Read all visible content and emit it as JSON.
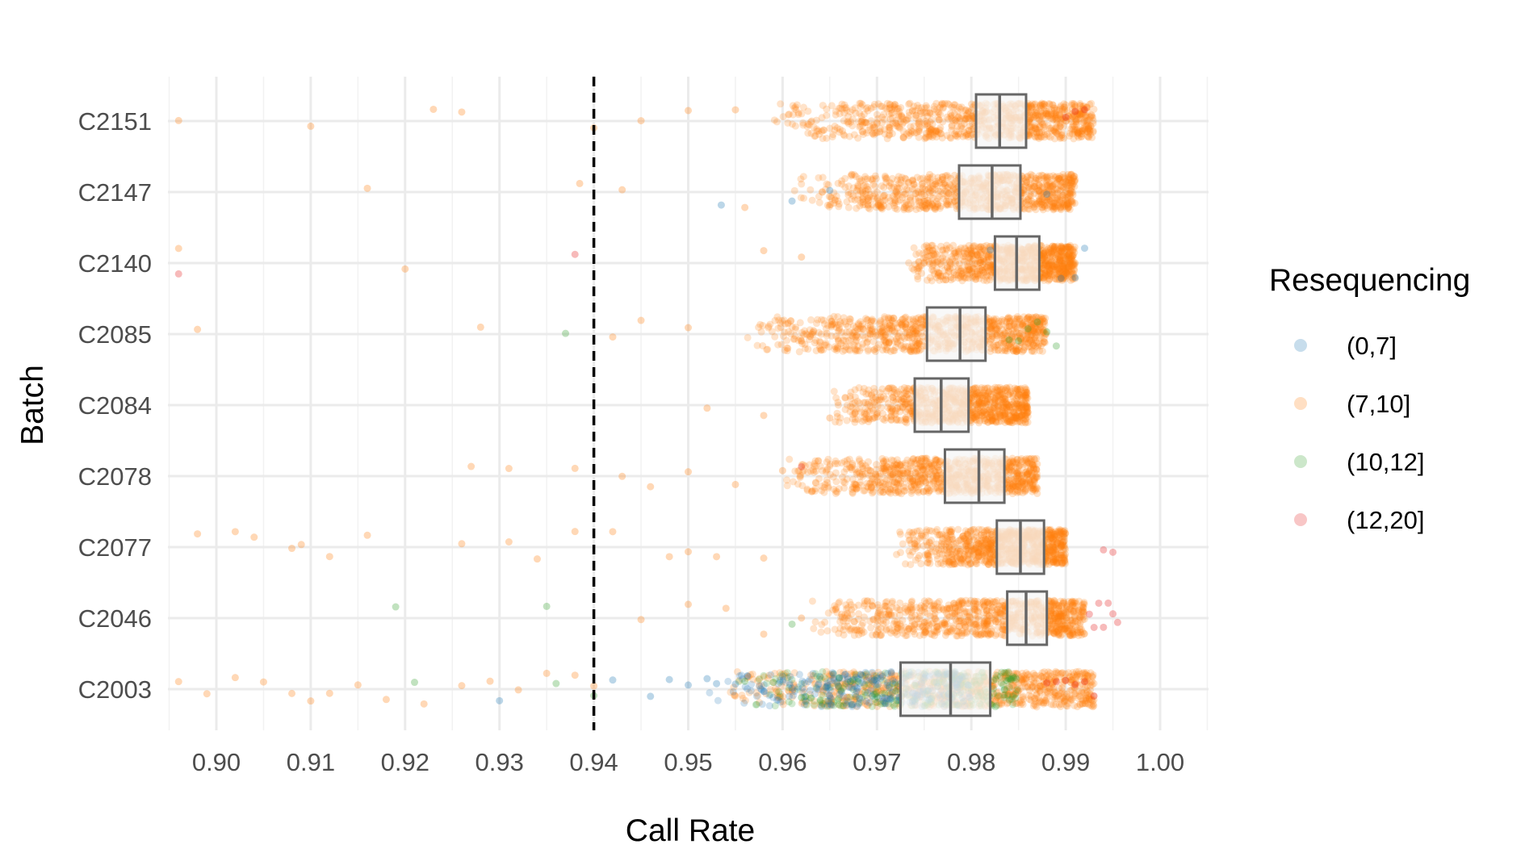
{
  "chart_data": {
    "type": "scatter",
    "subtype": "jittered strip plot with boxplots",
    "xlabel": "Call Rate",
    "ylabel": "Batch",
    "xlim": [
      0.895,
      1.005
    ],
    "x_ticks": [
      "0.90",
      "0.91",
      "0.92",
      "0.93",
      "0.94",
      "0.95",
      "0.96",
      "0.97",
      "0.98",
      "0.99",
      "1.00"
    ],
    "x_tick_values": [
      0.9,
      0.91,
      0.92,
      0.93,
      0.94,
      0.95,
      0.96,
      0.97,
      0.98,
      0.99,
      1.0
    ],
    "categories": [
      "C2151",
      "C2147",
      "C2140",
      "C2085",
      "C2084",
      "C2078",
      "C2077",
      "C2046",
      "C2003"
    ],
    "threshold": {
      "x": 0.94,
      "style": "dashed",
      "color": "#000000"
    },
    "grid": true,
    "legend": {
      "title": "Resequencing",
      "placement": "right",
      "entries": [
        {
          "label": "(0,7]",
          "color": "#1f78b4"
        },
        {
          "label": "(7,10]",
          "color": "#ff7f0e"
        },
        {
          "label": "(10,12]",
          "color": "#33a02c"
        },
        {
          "label": "(12,20]",
          "color": "#e31a1c"
        }
      ]
    },
    "boxplots": [
      {
        "batch": "C2151",
        "q1": 0.9805,
        "median": 0.983,
        "q3": 0.9858
      },
      {
        "batch": "C2147",
        "q1": 0.9787,
        "median": 0.9822,
        "q3": 0.9852
      },
      {
        "batch": "C2140",
        "q1": 0.9825,
        "median": 0.9848,
        "q3": 0.9872
      },
      {
        "batch": "C2085",
        "q1": 0.9753,
        "median": 0.9788,
        "q3": 0.9815
      },
      {
        "batch": "C2084",
        "q1": 0.974,
        "median": 0.9768,
        "q3": 0.9797
      },
      {
        "batch": "C2078",
        "q1": 0.9772,
        "median": 0.9808,
        "q3": 0.9835
      },
      {
        "batch": "C2077",
        "q1": 0.9827,
        "median": 0.9852,
        "q3": 0.9877
      },
      {
        "batch": "C2046",
        "q1": 0.9838,
        "median": 0.9858,
        "q3": 0.988
      },
      {
        "batch": "C2003",
        "q1": 0.9725,
        "median": 0.9778,
        "q3": 0.982
      }
    ],
    "series": [
      {
        "name": "(0,7]",
        "color": "#1f78b4",
        "points": [
          [
            "C2147",
            0.961
          ],
          [
            "C2147",
            0.9535
          ],
          [
            "C2147",
            0.965
          ],
          [
            "C2147",
            0.988
          ],
          [
            "C2140",
            0.991
          ],
          [
            "C2140",
            0.992
          ],
          [
            "C2140",
            0.9895
          ],
          [
            "C2140",
            0.982
          ],
          [
            "C2003",
            0.93
          ],
          [
            "C2003",
            0.942
          ],
          [
            "C2003",
            0.946
          ],
          [
            "C2003",
            0.95
          ],
          [
            "C2003",
            0.952
          ],
          [
            "C2003",
            0.955
          ],
          [
            "C2003",
            0.958
          ],
          [
            "C2003",
            0.961
          ],
          [
            "C2003",
            0.966
          ],
          [
            "C2003",
            0.97
          ],
          [
            "C2003",
            0.948
          ],
          [
            "C2003",
            0.953
          ]
        ]
      },
      {
        "name": "(7,10]",
        "color": "#ff7f0e",
        "points": [
          [
            "C2151",
            0.896
          ],
          [
            "C2151",
            0.91
          ],
          [
            "C2151",
            0.923
          ],
          [
            "C2151",
            0.926
          ],
          [
            "C2151",
            0.94
          ],
          [
            "C2151",
            0.945
          ],
          [
            "C2151",
            0.95
          ],
          [
            "C2151",
            0.955
          ],
          [
            "C2147",
            0.916
          ],
          [
            "C2147",
            0.9385
          ],
          [
            "C2147",
            0.943
          ],
          [
            "C2147",
            0.956
          ],
          [
            "C2140",
            0.896
          ],
          [
            "C2140",
            0.92
          ],
          [
            "C2140",
            0.958
          ],
          [
            "C2140",
            0.962
          ],
          [
            "C2085",
            0.898
          ],
          [
            "C2085",
            0.928
          ],
          [
            "C2085",
            0.942
          ],
          [
            "C2085",
            0.945
          ],
          [
            "C2085",
            0.95
          ],
          [
            "C2084",
            0.958
          ],
          [
            "C2084",
            0.952
          ],
          [
            "C2084",
            0.965
          ],
          [
            "C2084",
            0.986
          ],
          [
            "C2078",
            0.927
          ],
          [
            "C2078",
            0.931
          ],
          [
            "C2078",
            0.938
          ],
          [
            "C2078",
            0.943
          ],
          [
            "C2078",
            0.946
          ],
          [
            "C2078",
            0.95
          ],
          [
            "C2078",
            0.955
          ],
          [
            "C2078",
            0.96
          ],
          [
            "C2077",
            0.898
          ],
          [
            "C2077",
            0.902
          ],
          [
            "C2077",
            0.904
          ],
          [
            "C2077",
            0.908
          ],
          [
            "C2077",
            0.909
          ],
          [
            "C2077",
            0.912
          ],
          [
            "C2077",
            0.916
          ],
          [
            "C2077",
            0.926
          ],
          [
            "C2077",
            0.931
          ],
          [
            "C2077",
            0.934
          ],
          [
            "C2077",
            0.938
          ],
          [
            "C2077",
            0.942
          ],
          [
            "C2077",
            0.948
          ],
          [
            "C2077",
            0.95
          ],
          [
            "C2077",
            0.953
          ],
          [
            "C2077",
            0.958
          ],
          [
            "C2046",
            0.945
          ],
          [
            "C2046",
            0.95
          ],
          [
            "C2046",
            0.954
          ],
          [
            "C2046",
            0.958
          ],
          [
            "C2046",
            0.962
          ],
          [
            "C2003",
            0.896
          ],
          [
            "C2003",
            0.899
          ],
          [
            "C2003",
            0.902
          ],
          [
            "C2003",
            0.905
          ],
          [
            "C2003",
            0.908
          ],
          [
            "C2003",
            0.91
          ],
          [
            "C2003",
            0.912
          ],
          [
            "C2003",
            0.915
          ],
          [
            "C2003",
            0.918
          ],
          [
            "C2003",
            0.922
          ],
          [
            "C2003",
            0.926
          ],
          [
            "C2003",
            0.929
          ],
          [
            "C2003",
            0.932
          ],
          [
            "C2003",
            0.935
          ],
          [
            "C2003",
            0.938
          ],
          [
            "C2003",
            0.94
          ]
        ]
      },
      {
        "name": "(10,12]",
        "color": "#33a02c",
        "points": [
          [
            "C2085",
            0.937
          ],
          [
            "C2085",
            0.987
          ],
          [
            "C2085",
            0.988
          ],
          [
            "C2085",
            0.986
          ],
          [
            "C2085",
            0.985
          ],
          [
            "C2085",
            0.989
          ],
          [
            "C2085",
            0.984
          ],
          [
            "C2046",
            0.919
          ],
          [
            "C2046",
            0.935
          ],
          [
            "C2046",
            0.961
          ],
          [
            "C2003",
            0.921
          ],
          [
            "C2003",
            0.936
          ],
          [
            "C2003",
            0.94
          ],
          [
            "C2003",
            0.956
          ],
          [
            "C2003",
            0.959
          ],
          [
            "C2003",
            0.962
          ],
          [
            "C2003",
            0.964
          ],
          [
            "C2003",
            0.966
          ],
          [
            "C2003",
            0.968
          ],
          [
            "C2003",
            0.97
          ],
          [
            "C2003",
            0.972
          ],
          [
            "C2003",
            0.974
          ]
        ]
      },
      {
        "name": "(12,20]",
        "color": "#e31a1c",
        "points": [
          [
            "C2151",
            0.991
          ],
          [
            "C2151",
            0.992
          ],
          [
            "C2151",
            0.99
          ],
          [
            "C2140",
            0.896
          ],
          [
            "C2140",
            0.938
          ],
          [
            "C2078",
            0.962
          ],
          [
            "C2077",
            0.994
          ],
          [
            "C2077",
            0.995
          ],
          [
            "C2046",
            0.993
          ],
          [
            "C2046",
            0.994
          ],
          [
            "C2046",
            0.995
          ],
          [
            "C2046",
            0.9945
          ],
          [
            "C2046",
            0.9935
          ],
          [
            "C2046",
            0.9955
          ],
          [
            "C2046",
            0.9925
          ],
          [
            "C2003",
            0.988
          ],
          [
            "C2003",
            0.99
          ],
          [
            "C2003",
            0.991
          ],
          [
            "C2003",
            0.992
          ],
          [
            "C2003",
            0.989
          ],
          [
            "C2003",
            0.993
          ]
        ]
      }
    ],
    "dense_clusters": [
      {
        "batch": "C2151",
        "x_min": 0.958,
        "x_max": 0.993,
        "color": "#ff7f0e"
      },
      {
        "batch": "C2147",
        "x_min": 0.961,
        "x_max": 0.991,
        "color": "#ff7f0e"
      },
      {
        "batch": "C2140",
        "x_min": 0.973,
        "x_max": 0.991,
        "color": "#ff7f0e"
      },
      {
        "batch": "C2085",
        "x_min": 0.956,
        "x_max": 0.988,
        "color": "#ff7f0e"
      },
      {
        "batch": "C2084",
        "x_min": 0.965,
        "x_max": 0.986,
        "color": "#ff7f0e"
      },
      {
        "batch": "C2078",
        "x_min": 0.96,
        "x_max": 0.987,
        "color": "#ff7f0e"
      },
      {
        "batch": "C2077",
        "x_min": 0.972,
        "x_max": 0.99,
        "color": "#ff7f0e"
      },
      {
        "batch": "C2046",
        "x_min": 0.963,
        "x_max": 0.992,
        "color": "#ff7f0e"
      },
      {
        "batch": "C2003",
        "x_min": 0.952,
        "x_max": 0.993,
        "color": "#ff7f0e"
      },
      {
        "batch": "C2003",
        "x_min": 0.955,
        "x_max": 0.985,
        "color": "#33a02c"
      },
      {
        "batch": "C2003",
        "x_min": 0.952,
        "x_max": 0.98,
        "color": "#1f78b4"
      }
    ]
  }
}
